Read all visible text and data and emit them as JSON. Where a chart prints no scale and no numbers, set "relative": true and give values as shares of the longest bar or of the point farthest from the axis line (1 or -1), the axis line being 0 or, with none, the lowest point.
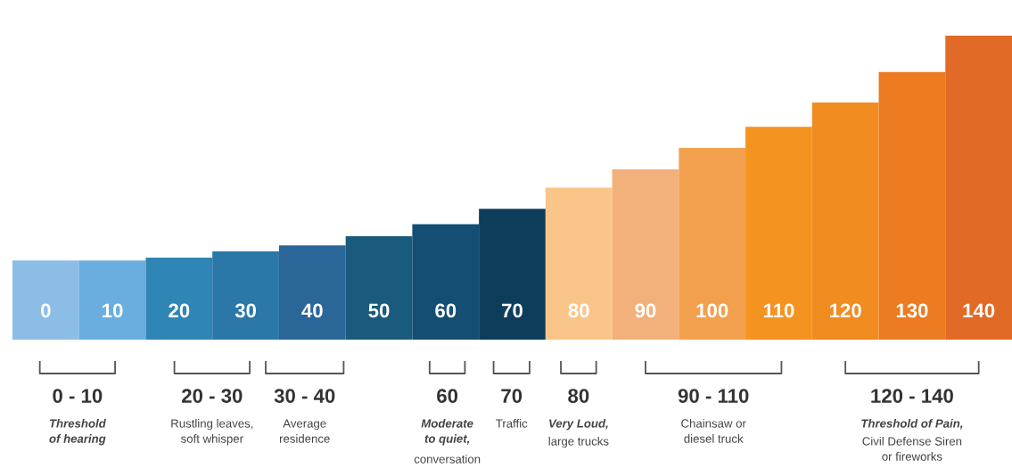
{
  "chart_data": {
    "type": "bar",
    "relative": true,
    "categories": [
      "0",
      "10",
      "20",
      "30",
      "40",
      "50",
      "60",
      "70",
      "80",
      "90",
      "100",
      "110",
      "120",
      "130",
      "140"
    ],
    "values": [
      0.26,
      0.26,
      0.27,
      0.29,
      0.31,
      0.34,
      0.38,
      0.43,
      0.5,
      0.56,
      0.63,
      0.7,
      0.78,
      0.88,
      1
    ],
    "colors": [
      "#8bbde6",
      "#6aaedf",
      "#2f86b4",
      "#2a77a8",
      "#2b6699",
      "#1a5b7d",
      "#144f73",
      "#0e3d5c",
      "#fac589",
      "#f2b07a",
      "#f2a04e",
      "#f4931f",
      "#f18c20",
      "#ec7b22",
      "#e06a26"
    ],
    "annotations": [
      "0 - 10",
      "Threshold\nof hearing",
      "20 - 30",
      "Rustling leaves,\nsoft whisper",
      "30 - 40",
      "Average\nresidence",
      "60",
      "Moderate\nto quiet,",
      "conversation",
      "70",
      "Traffic",
      "80",
      "Very Loud,",
      "large trucks",
      "90 - 110",
      "Chainsaw or\ndiesel truck",
      "120 - 140",
      "Threshold of Pain,",
      "Civil Defense Siren\nor fireworks"
    ]
  }
}
